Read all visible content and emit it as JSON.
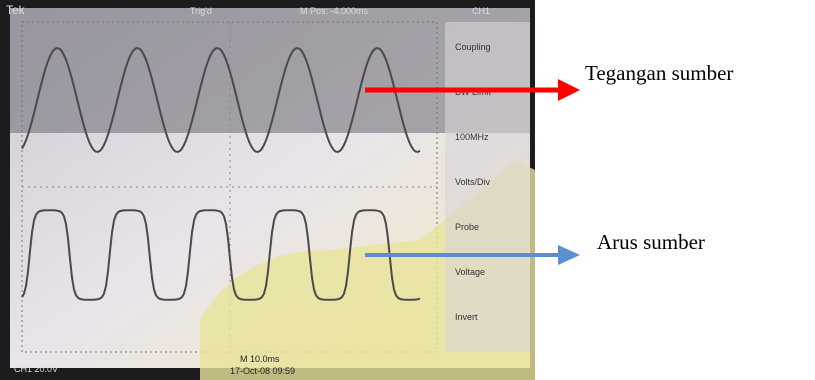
{
  "scope": {
    "brand": "Tek",
    "trigger": "Trig'd",
    "position": "M Pos: -4.000ms",
    "channel": "CH1",
    "menu": [
      "Coupling",
      "BW Limit",
      "100MHz",
      "Volts/Div",
      "Probe",
      "Voltage",
      "Invert"
    ],
    "scale": "CH1 20.0V",
    "timebase": "M 10.0ms",
    "date": "17-Oct-08 09:59"
  },
  "annotations": {
    "voltage": "Tegangan sumber",
    "current": "Arus sumber"
  }
}
